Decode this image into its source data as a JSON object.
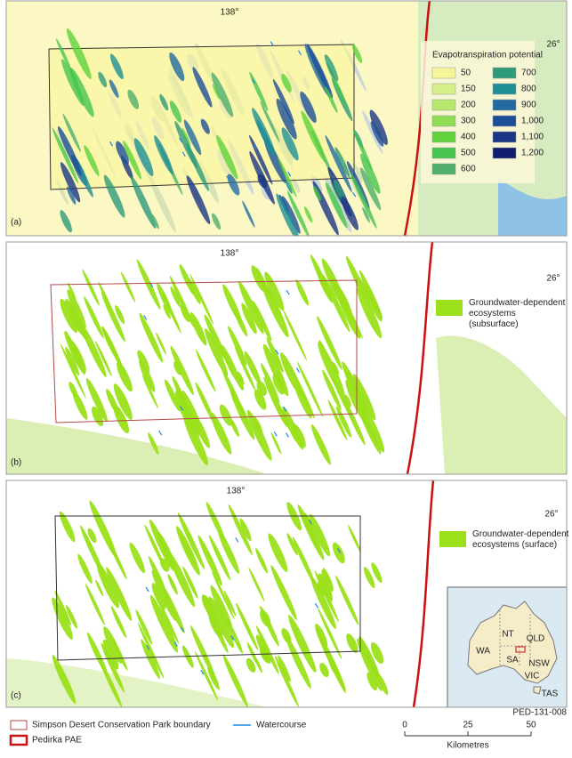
{
  "panels": [
    {
      "label": "(a)",
      "longitude": "138°",
      "latitude": "26°",
      "legend": {
        "title": "Evapotranspiration potential",
        "items": [
          {
            "label": "50",
            "color": "#f7f59a"
          },
          {
            "label": "150",
            "color": "#d8f08a"
          },
          {
            "label": "200",
            "color": "#b7e86e"
          },
          {
            "label": "300",
            "color": "#8fdc55"
          },
          {
            "label": "400",
            "color": "#5fd23c"
          },
          {
            "label": "500",
            "color": "#47c44f"
          },
          {
            "label": "600",
            "color": "#4fae6e"
          },
          {
            "label": "700",
            "color": "#2e9a7a"
          },
          {
            "label": "800",
            "color": "#1f8f96"
          },
          {
            "label": "900",
            "color": "#236aa0"
          },
          {
            "label": "1,000",
            "color": "#1d4f98"
          },
          {
            "label": "1,100",
            "color": "#1a3685"
          },
          {
            "label": "1,200",
            "color": "#101c6e"
          }
        ]
      }
    },
    {
      "label": "(b)",
      "longitude": "138°",
      "latitude": "26°",
      "legend": {
        "title": "Groundwater-dependent ecosystems (subsurface)",
        "color": "#9be01a"
      }
    },
    {
      "label": "(c)",
      "longitude": "138°",
      "latitude": "26°",
      "legend": {
        "title": "Groundwater-dependent ecosystems (surface)",
        "color": "#9be01a"
      }
    }
  ],
  "inset": {
    "labels": [
      "NT",
      "QLD",
      "WA",
      "SA",
      "NSW",
      "VIC",
      "TAS"
    ]
  },
  "legend": {
    "items": [
      "Simpson Desert Conservation Park boundary",
      "Watercourse",
      "Pedirka PAE"
    ]
  },
  "scale": {
    "ticks": [
      0,
      25,
      50
    ],
    "unit": "Kilometres"
  },
  "figure_id": "PED-131-008"
}
